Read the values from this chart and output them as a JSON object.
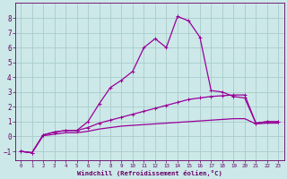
{
  "background_color": "#cce8e8",
  "grid_color": "#aacccc",
  "line_color": "#990099",
  "xlabel": "Windchill (Refroidissement éolien,°C)",
  "xlabel_color": "#660066",
  "tick_color": "#660066",
  "xlim": [
    -0.5,
    23.5
  ],
  "ylim": [
    -1.6,
    9.0
  ],
  "yticks": [
    -1,
    0,
    1,
    2,
    3,
    4,
    5,
    6,
    7,
    8
  ],
  "xticks": [
    0,
    1,
    2,
    3,
    4,
    5,
    6,
    7,
    8,
    9,
    10,
    11,
    12,
    13,
    14,
    15,
    16,
    17,
    18,
    19,
    20,
    21,
    22,
    23
  ],
  "line1_x": [
    0,
    1,
    2,
    3,
    4,
    5,
    6,
    7,
    8,
    9,
    10,
    11,
    12,
    13,
    14,
    15,
    16,
    17,
    18,
    19,
    20,
    21,
    22,
    23
  ],
  "line1_y": [
    -1,
    -1.1,
    0.1,
    0.3,
    0.4,
    0.4,
    1.0,
    2.2,
    3.3,
    3.8,
    4.4,
    6.0,
    6.6,
    6.0,
    8.1,
    7.8,
    6.7,
    3.1,
    3.0,
    2.7,
    2.6,
    0.9,
    1.0,
    1.0
  ],
  "line2_x": [
    0,
    1,
    2,
    3,
    4,
    5,
    6,
    7,
    8,
    9,
    10,
    11,
    12,
    13,
    14,
    15,
    16,
    17,
    18,
    19,
    20,
    21,
    22,
    23
  ],
  "line2_y": [
    -1,
    -1.1,
    0.1,
    0.3,
    0.4,
    0.4,
    0.6,
    0.9,
    1.1,
    1.3,
    1.5,
    1.7,
    1.9,
    2.1,
    2.3,
    2.5,
    2.6,
    2.7,
    2.75,
    2.8,
    2.8,
    0.9,
    1.0,
    1.0
  ],
  "line3_x": [
    0,
    1,
    2,
    3,
    4,
    5,
    6,
    7,
    8,
    9,
    10,
    11,
    12,
    13,
    14,
    15,
    16,
    17,
    18,
    19,
    20,
    21,
    22,
    23
  ],
  "line3_y": [
    -1,
    -1.1,
    0.05,
    0.15,
    0.25,
    0.25,
    0.35,
    0.5,
    0.6,
    0.7,
    0.75,
    0.8,
    0.85,
    0.9,
    0.95,
    1.0,
    1.05,
    1.1,
    1.15,
    1.2,
    1.2,
    0.85,
    0.9,
    0.9
  ]
}
